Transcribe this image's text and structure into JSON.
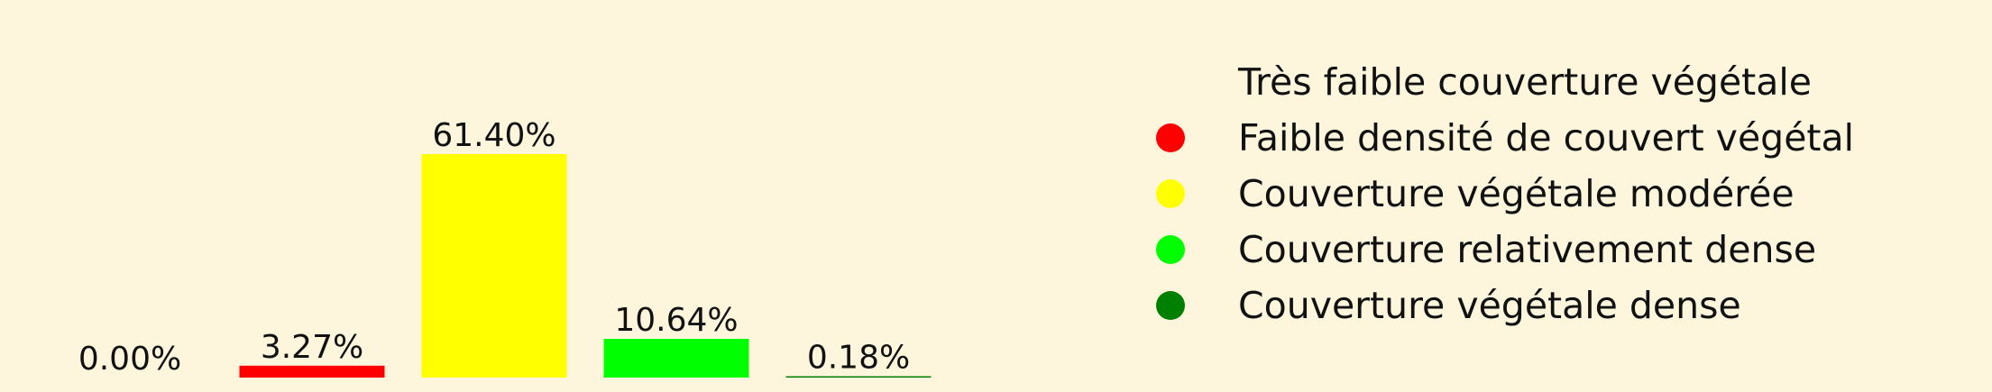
{
  "chart_data": {
    "type": "bar",
    "categories": [
      "Très faible couverture végétale",
      "Faible densité de couvert végétal",
      "Couverture végétale modérée",
      "Couverture relativement dense",
      "Couverture végétale dense"
    ],
    "values": [
      0.0,
      3.27,
      61.4,
      10.64,
      0.18
    ],
    "data_labels": [
      "0.00%",
      "3.27%",
      "61.40%",
      "10.64%",
      "0.18%"
    ],
    "colors": [
      "#fdf6dc",
      "#ff0000",
      "#ffff00",
      "#00ff00",
      "#008000"
    ],
    "title": "",
    "xlabel": "",
    "ylabel": "",
    "ylim": [
      0,
      61.4
    ],
    "grid": false,
    "axes_visible": false,
    "legend_position": "right",
    "legend_marker": "circle",
    "label_color": "#111111",
    "background": "#fdf6dc"
  }
}
